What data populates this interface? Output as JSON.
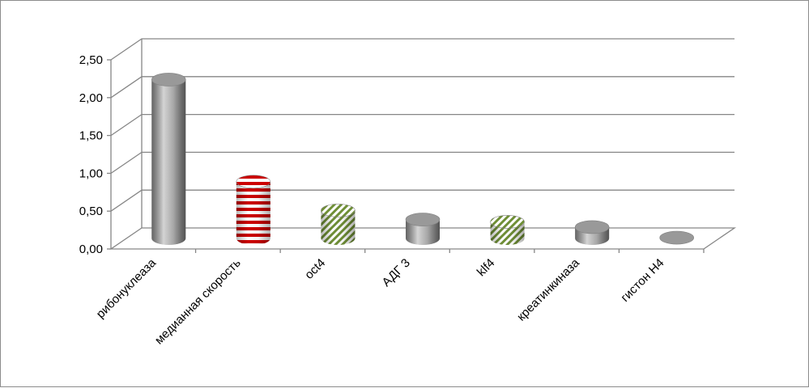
{
  "chart_data": {
    "type": "bar",
    "style": "3d-cylinder",
    "categories": [
      "рибонуклеаза",
      "медианная скорость",
      "oct4",
      "АДГ 3",
      "klf4",
      "креатинкиназа",
      "гистон Н4"
    ],
    "values": [
      2.1,
      0.75,
      0.37,
      0.25,
      0.22,
      0.15,
      0.01
    ],
    "fills": [
      "gray",
      "red-stripes",
      "green-hatch",
      "gray",
      "green-hatch",
      "gray",
      "gray"
    ],
    "yticks": [
      "0,00",
      "0,50",
      "1,00",
      "1,50",
      "2,00",
      "2,50"
    ],
    "ylim": [
      0,
      2.5
    ],
    "grid": true,
    "legend": false,
    "title": "",
    "xlabel": "",
    "ylabel": "",
    "colors": {
      "gray": "#a6a6a6",
      "red": "#cc0000",
      "green": "#77933c",
      "gridline": "#868686"
    }
  }
}
